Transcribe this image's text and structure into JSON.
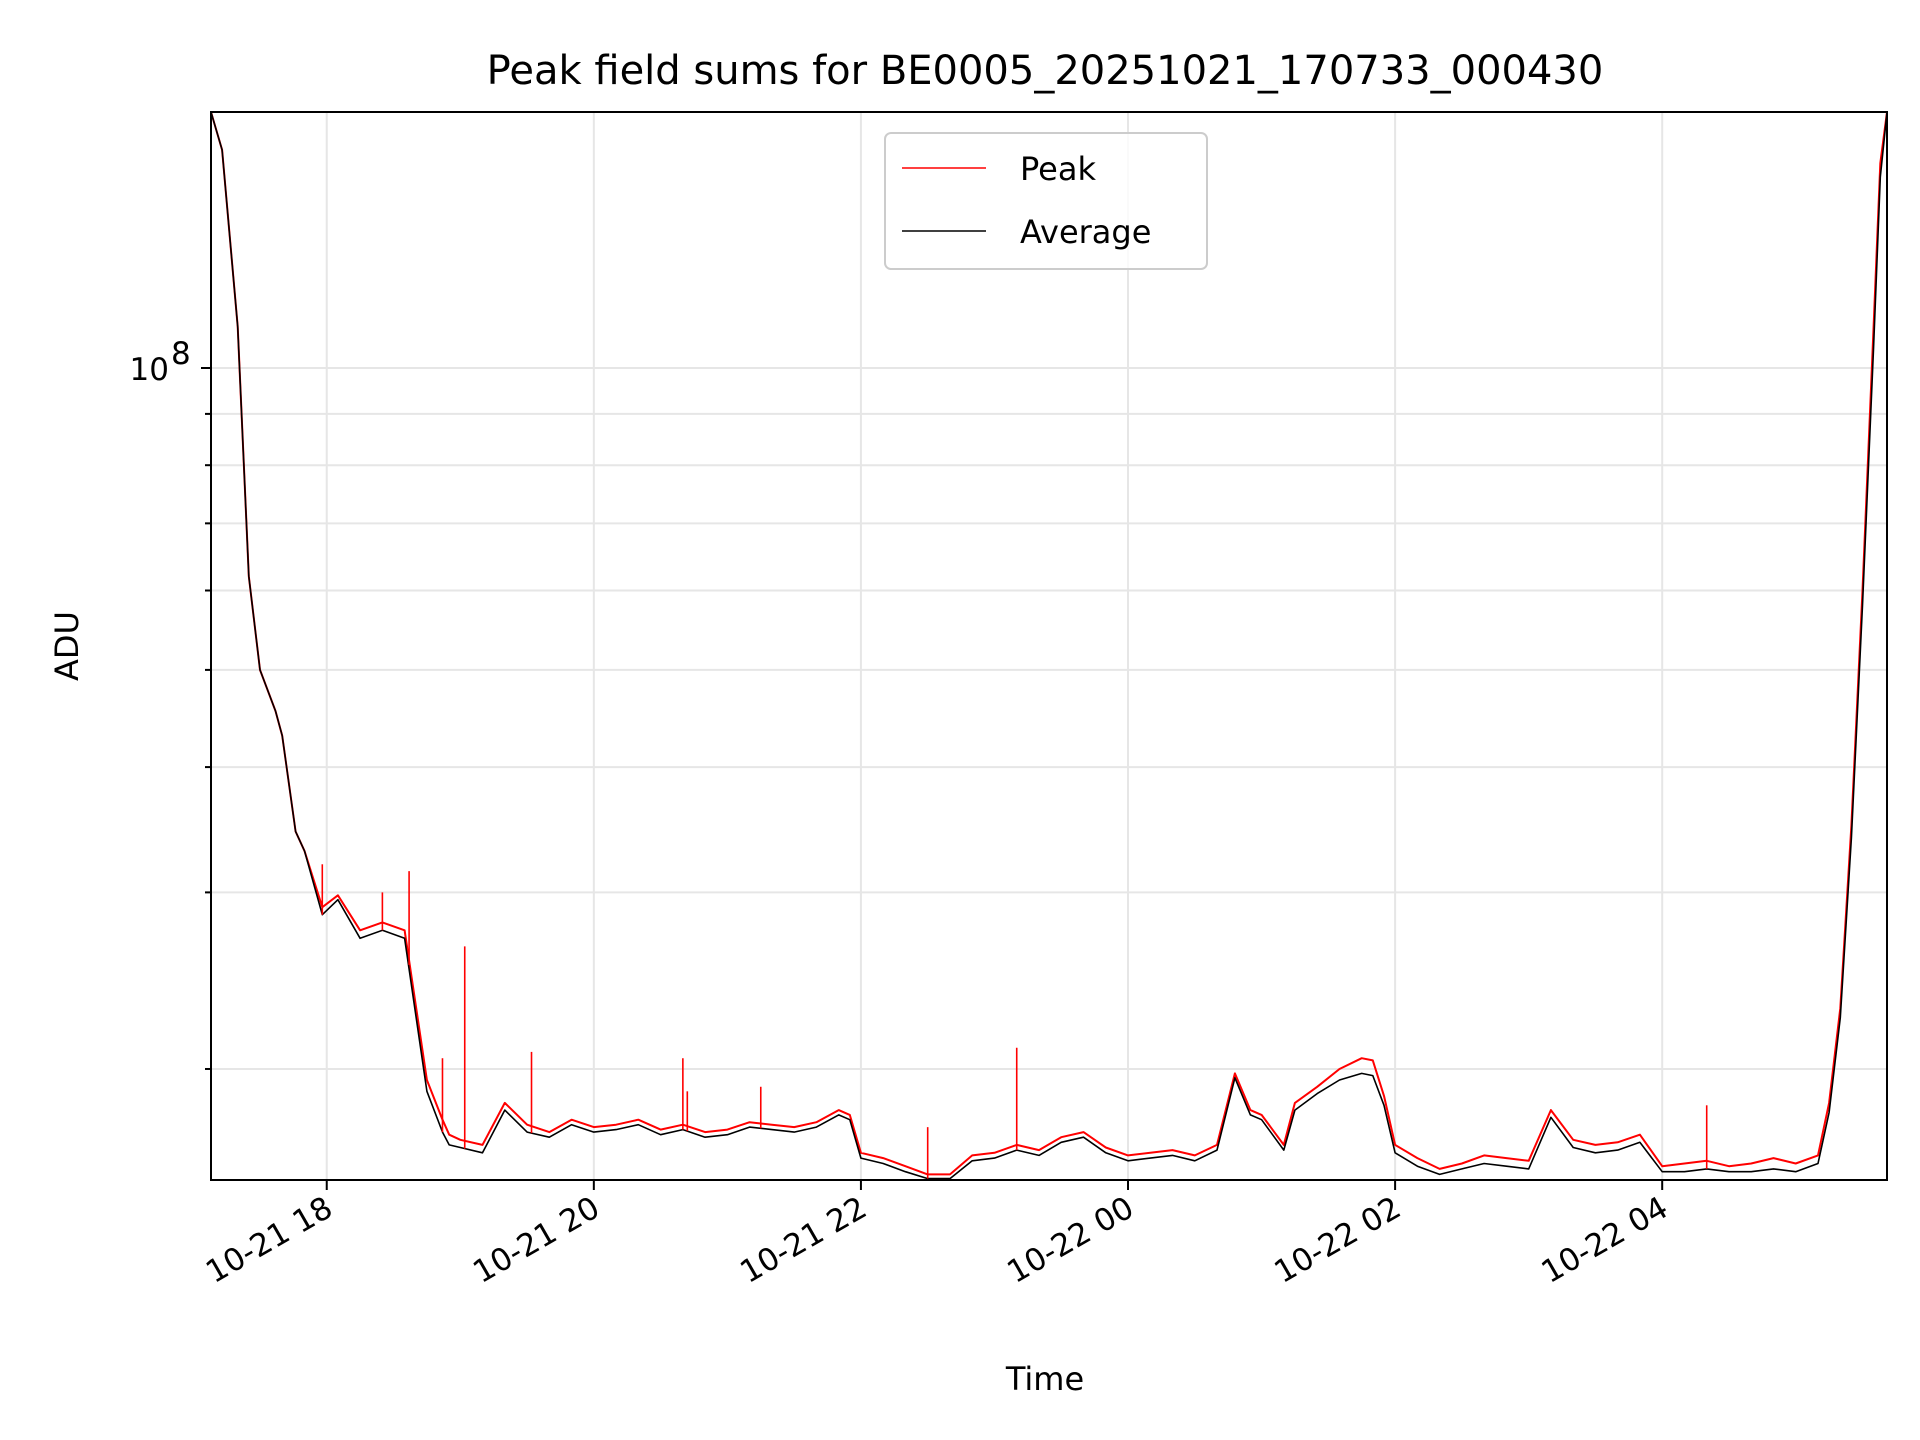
{
  "chart_data": {
    "type": "line",
    "title": "Peak field sums for BE0005_20251021_170733_000430",
    "xlabel": "Time",
    "ylabel": "ADU",
    "x_ticks": [
      "10-21 18",
      "10-21 20",
      "10-21 22",
      "10-22 00",
      "10-22 02",
      "10-22 04"
    ],
    "y_ticks": [
      {
        "base": "10",
        "exp": "8",
        "value": 100000000
      }
    ],
    "y_scale": "log",
    "ylim": [
      15500000,
      180000000
    ],
    "xlim": [
      "2025-10-21 17:08",
      "2025-10-22 05:41"
    ],
    "grid": true,
    "legend": {
      "position": "upper center",
      "entries": [
        "Peak",
        "Average"
      ]
    },
    "colors": {
      "Peak": "#ff0000",
      "Average": "#000000"
    },
    "x": [
      "17:08",
      "17:13",
      "17:20",
      "17:25",
      "17:30",
      "17:37",
      "17:40",
      "17:46",
      "17:50",
      "17:58",
      "18:05",
      "18:15",
      "18:25",
      "18:35",
      "18:45",
      "18:52",
      "18:55",
      "19:00",
      "19:10",
      "19:20",
      "19:30",
      "19:40",
      "19:50",
      "20:00",
      "20:10",
      "20:20",
      "20:30",
      "20:40",
      "20:50",
      "21:00",
      "21:10",
      "21:20",
      "21:30",
      "21:40",
      "21:50",
      "21:55",
      "22:00",
      "22:10",
      "22:20",
      "22:30",
      "22:40",
      "22:50",
      "23:00",
      "23:10",
      "23:20",
      "23:30",
      "23:40",
      "23:50",
      "00:00",
      "00:10",
      "00:20",
      "00:30",
      "00:40",
      "00:48",
      "00:55",
      "01:00",
      "01:10",
      "01:15",
      "01:25",
      "01:35",
      "01:45",
      "01:50",
      "01:55",
      "02:00",
      "02:10",
      "02:20",
      "02:30",
      "02:40",
      "02:50",
      "03:00",
      "03:10",
      "03:20",
      "03:30",
      "03:40",
      "03:50",
      "04:00",
      "04:10",
      "04:20",
      "04:30",
      "04:40",
      "04:50",
      "05:00",
      "05:10",
      "05:15",
      "05:20",
      "05:25",
      "05:30",
      "05:35",
      "05:38",
      "05:41"
    ],
    "series": [
      {
        "name": "Peak",
        "values": [
          180000000,
          165000000,
          110000000,
          62000000,
          50000000,
          45500000,
          43000000,
          34500000,
          33000000,
          29000000,
          29800000,
          27500000,
          28000000,
          27500000,
          19500000,
          17800000,
          17200000,
          17000000,
          16800000,
          18500000,
          17600000,
          17300000,
          17800000,
          17500000,
          17600000,
          17800000,
          17400000,
          17600000,
          17300000,
          17400000,
          17700000,
          17600000,
          17500000,
          17700000,
          18200000,
          18000000,
          16500000,
          16300000,
          16000000,
          15700000,
          15700000,
          16400000,
          16500000,
          16800000,
          16600000,
          17100000,
          17300000,
          16700000,
          16400000,
          16500000,
          16600000,
          16400000,
          16800000,
          19800000,
          18200000,
          18000000,
          16800000,
          18500000,
          19200000,
          20000000,
          20500000,
          20400000,
          18800000,
          16800000,
          16300000,
          15900000,
          16100000,
          16400000,
          16300000,
          16200000,
          18200000,
          17000000,
          16800000,
          16900000,
          17200000,
          16000000,
          16100000,
          16200000,
          16000000,
          16100000,
          16300000,
          16100000,
          16400000,
          18500000,
          23000000,
          35000000,
          60000000,
          110000000,
          160000000,
          180000000
        ]
      },
      {
        "name": "Average",
        "values": [
          180000000,
          165000000,
          110000000,
          62000000,
          50000000,
          45500000,
          43000000,
          34500000,
          33000000,
          28500000,
          29500000,
          27000000,
          27500000,
          27000000,
          19000000,
          17300000,
          16800000,
          16700000,
          16500000,
          18200000,
          17300000,
          17100000,
          17600000,
          17300000,
          17400000,
          17600000,
          17200000,
          17400000,
          17100000,
          17200000,
          17500000,
          17400000,
          17300000,
          17500000,
          18000000,
          17800000,
          16300000,
          16100000,
          15800000,
          15550000,
          15550000,
          16200000,
          16300000,
          16600000,
          16400000,
          16900000,
          17100000,
          16500000,
          16200000,
          16300000,
          16400000,
          16200000,
          16600000,
          19600000,
          18000000,
          17800000,
          16600000,
          18200000,
          18900000,
          19500000,
          19800000,
          19700000,
          18400000,
          16500000,
          16000000,
          15700000,
          15900000,
          16100000,
          16000000,
          15900000,
          17900000,
          16700000,
          16500000,
          16600000,
          16900000,
          15800000,
          15800000,
          15900000,
          15800000,
          15800000,
          15900000,
          15800000,
          16100000,
          18100000,
          22500000,
          34000000,
          58000000,
          105000000,
          155000000,
          180000000
        ]
      }
    ],
    "spikes": [
      {
        "x": "17:58",
        "y": 32000000
      },
      {
        "x": "18:25",
        "y": 30000000
      },
      {
        "x": "18:37",
        "y": 31500000
      },
      {
        "x": "18:52",
        "y": 20500000
      },
      {
        "x": "19:02",
        "y": 26500000
      },
      {
        "x": "19:32",
        "y": 20800000
      },
      {
        "x": "20:40",
        "y": 20500000
      },
      {
        "x": "20:42",
        "y": 19000000
      },
      {
        "x": "21:15",
        "y": 19200000
      },
      {
        "x": "22:30",
        "y": 17500000
      },
      {
        "x": "23:10",
        "y": 21000000
      },
      {
        "x": "04:20",
        "y": 18400000
      }
    ]
  }
}
